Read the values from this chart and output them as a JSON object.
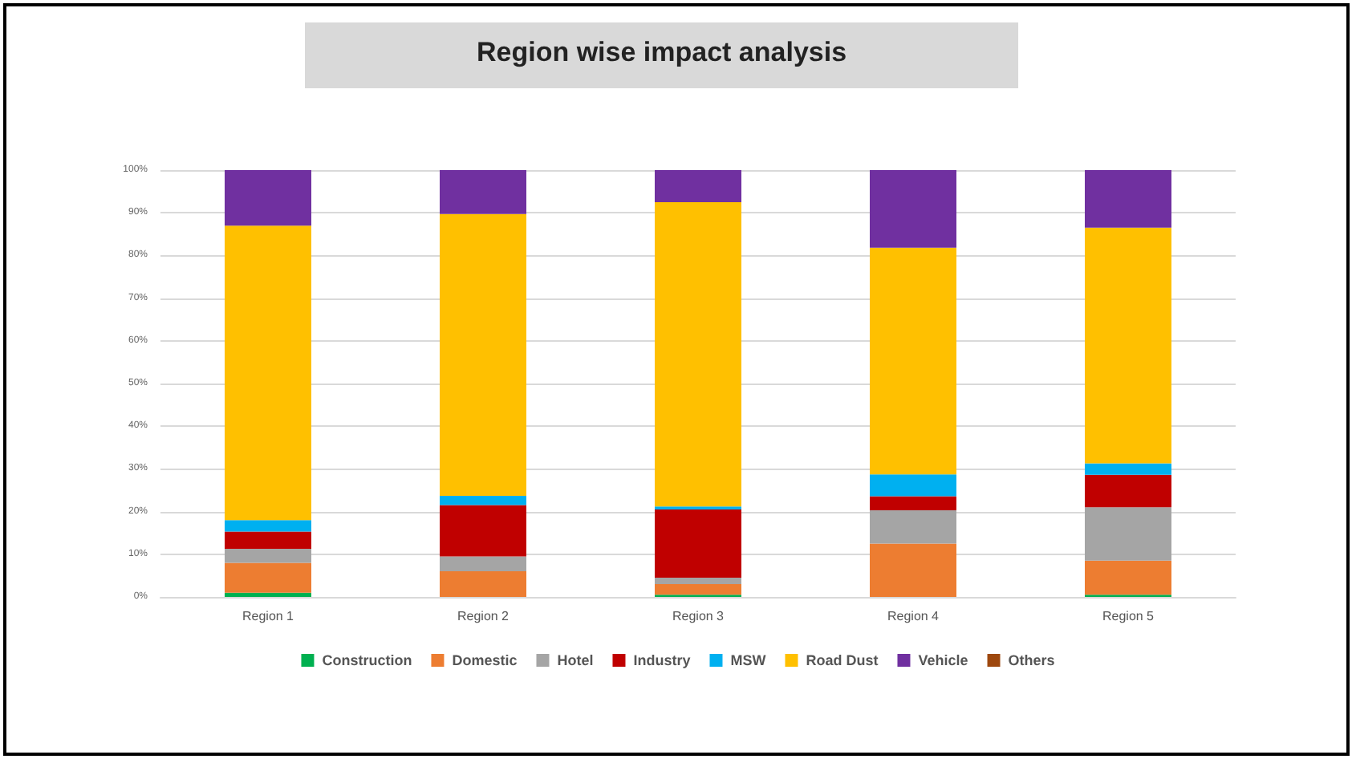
{
  "chart_data": {
    "type": "bar",
    "title": "Region wise impact analysis",
    "stacked": true,
    "categories": [
      "Region 1",
      "Region 2",
      "Region 3",
      "Region 4",
      "Region 5"
    ],
    "series": [
      {
        "name": "Construction",
        "color": "#00b050",
        "values": [
          1,
          0,
          0.5,
          0,
          0.5
        ]
      },
      {
        "name": "Domestic",
        "color": "#ed7d31",
        "values": [
          7,
          6,
          2.5,
          12.5,
          8
        ]
      },
      {
        "name": "Hotel",
        "color": "#a5a5a5",
        "values": [
          3.3,
          3.5,
          1.5,
          7.8,
          12.5
        ]
      },
      {
        "name": "Industry",
        "color": "#c00000",
        "values": [
          4,
          12,
          16,
          3.3,
          7.6
        ]
      },
      {
        "name": "MSW",
        "color": "#00b0f0",
        "values": [
          2.7,
          2.2,
          0.7,
          5.1,
          2.7
        ]
      },
      {
        "name": "Road Dust",
        "color": "#ffc000",
        "values": [
          69,
          66,
          71.3,
          53.1,
          55.2
        ]
      },
      {
        "name": "Vehicle",
        "color": "#7030a0",
        "values": [
          13,
          10.3,
          7.5,
          18.2,
          13.5
        ]
      },
      {
        "name": "Others",
        "color": "#9e480e",
        "values": [
          0,
          0,
          0,
          0,
          0
        ]
      }
    ],
    "ylim": [
      0,
      100
    ],
    "yticks": [
      {
        "value": 0,
        "label": "0%"
      },
      {
        "value": 10,
        "label": "10%"
      },
      {
        "value": 20,
        "label": "20%"
      },
      {
        "value": 30,
        "label": "30%"
      },
      {
        "value": 40,
        "label": "40%"
      },
      {
        "value": 50,
        "label": "50%"
      },
      {
        "value": 60,
        "label": "60%"
      },
      {
        "value": 70,
        "label": "70%"
      },
      {
        "value": 80,
        "label": "80%"
      },
      {
        "value": 90,
        "label": "90%"
      },
      {
        "value": 100,
        "label": "100%"
      }
    ],
    "grid": "y",
    "legend": "bottom"
  }
}
